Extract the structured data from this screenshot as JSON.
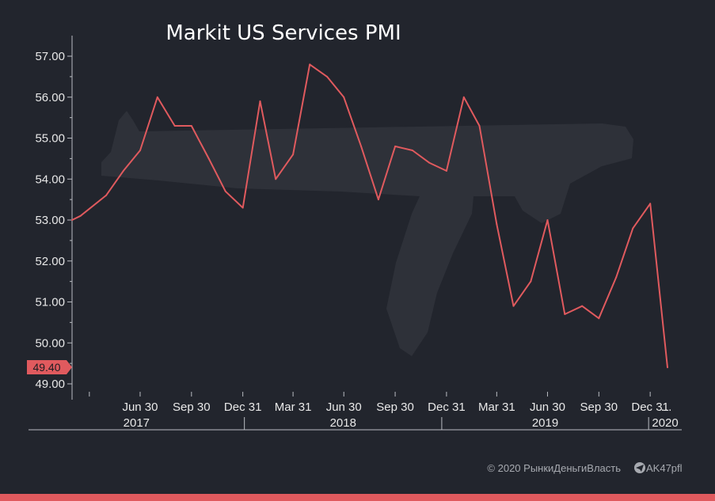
{
  "colors": {
    "background": "#22252d",
    "line": "#e05a5e",
    "text": "#e8e8e8",
    "axis": "#b9bcc2",
    "muted": "#a7aab0",
    "watermark": "#2e3139",
    "accent_bar": "#e05a5e"
  },
  "chart_data": {
    "type": "line",
    "title": "Markit US Services PMI",
    "xlabel": "",
    "ylabel": "",
    "ylim": [
      48.8,
      57.6
    ],
    "yticks": [
      "57.00",
      "56.00",
      "55.00",
      "54.00",
      "53.00",
      "52.00",
      "51.00",
      "50.00",
      "49.00"
    ],
    "x_tick_labels": [
      "Jun 30",
      "Sep 30",
      "Dec 31",
      "Mar 31",
      "Jun 30",
      "Sep 30",
      "Dec 31",
      "Mar 31",
      "Jun 30",
      "Sep 30",
      "Dec 31",
      "…"
    ],
    "year_labels": [
      "2017",
      "2018",
      "2019",
      "2020"
    ],
    "last_value_label": "49.40",
    "grid": false,
    "legend": "none",
    "series": [
      {
        "color": "#e05a5e",
        "points": [
          [
            "2017-02-28",
            53.0
          ],
          [
            "2017-03-15",
            53.1
          ],
          [
            "2017-04-30",
            53.6
          ],
          [
            "2017-05-31",
            54.2
          ],
          [
            "2017-06-30",
            54.7
          ],
          [
            "2017-07-31",
            56.0
          ],
          [
            "2017-08-31",
            55.3
          ],
          [
            "2017-09-30",
            55.3
          ],
          [
            "2017-10-31",
            54.5
          ],
          [
            "2017-11-30",
            53.7
          ],
          [
            "2017-12-31",
            53.3
          ],
          [
            "2018-01-31",
            55.9
          ],
          [
            "2018-02-28",
            54.0
          ],
          [
            "2018-03-31",
            54.6
          ],
          [
            "2018-04-30",
            56.8
          ],
          [
            "2018-05-31",
            56.5
          ],
          [
            "2018-06-30",
            56.0
          ],
          [
            "2018-07-31",
            54.8
          ],
          [
            "2018-08-31",
            53.5
          ],
          [
            "2018-09-30",
            54.8
          ],
          [
            "2018-10-31",
            54.7
          ],
          [
            "2018-11-30",
            54.4
          ],
          [
            "2018-12-31",
            54.2
          ],
          [
            "2019-01-31",
            56.0
          ],
          [
            "2019-02-28",
            55.3
          ],
          [
            "2019-03-31",
            52.9
          ],
          [
            "2019-04-30",
            50.9
          ],
          [
            "2019-05-31",
            51.5
          ],
          [
            "2019-06-30",
            53.0
          ],
          [
            "2019-07-31",
            50.7
          ],
          [
            "2019-08-31",
            50.9
          ],
          [
            "2019-09-30",
            50.6
          ],
          [
            "2019-10-31",
            51.6
          ],
          [
            "2019-11-30",
            52.8
          ],
          [
            "2019-12-31",
            53.4
          ],
          [
            "2020-01-31",
            49.4
          ]
        ]
      }
    ]
  },
  "footer": {
    "copyright": "© 2020  РынкиДеньгиВласть",
    "handle": "AK47pfl",
    "icon": "telegram-icon"
  }
}
